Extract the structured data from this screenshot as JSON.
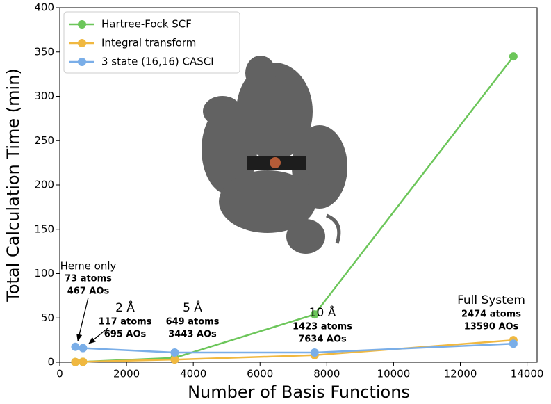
{
  "chart_data": {
    "type": "line",
    "xlabel": "Number of Basis Functions",
    "ylabel": "Total Calculation Time (min)",
    "x": [
      467,
      695,
      3443,
      7634,
      13590
    ],
    "series": [
      {
        "name": "Hartree-Fock SCF",
        "color": "#6cc65a",
        "values": [
          0.3,
          0.5,
          5,
          54,
          345
        ]
      },
      {
        "name": "Integral transform",
        "color": "#f0b840",
        "values": [
          0.3,
          0.5,
          3,
          8,
          25
        ]
      },
      {
        "name": "3 state (16,16) CASCI",
        "color": "#7aaee8",
        "values": [
          17.5,
          16,
          11,
          11,
          21
        ]
      }
    ],
    "xlim": [
      0,
      14300
    ],
    "xticks": [
      0,
      2000,
      4000,
      6000,
      8000,
      10000,
      12000,
      14000
    ],
    "ylim": [
      0,
      400
    ],
    "yticks": [
      0,
      50,
      100,
      150,
      200,
      250,
      300,
      350,
      400
    ],
    "grid": false,
    "legend": "upper left",
    "annotations": [
      {
        "title": "Heme only",
        "lines": [
          "73 atoms",
          "467 AOs"
        ]
      },
      {
        "title": "2 Å",
        "lines": [
          "117 atoms",
          "695 AOs"
        ]
      },
      {
        "title": "5 Å",
        "lines": [
          "649 atoms",
          "3443 AOs"
        ]
      },
      {
        "title": "10 Å",
        "lines": [
          "1423 atoms",
          "7634 AOs"
        ]
      },
      {
        "title": "Full System",
        "lines": [
          "2474 atoms",
          "13590 AOs"
        ]
      }
    ]
  }
}
